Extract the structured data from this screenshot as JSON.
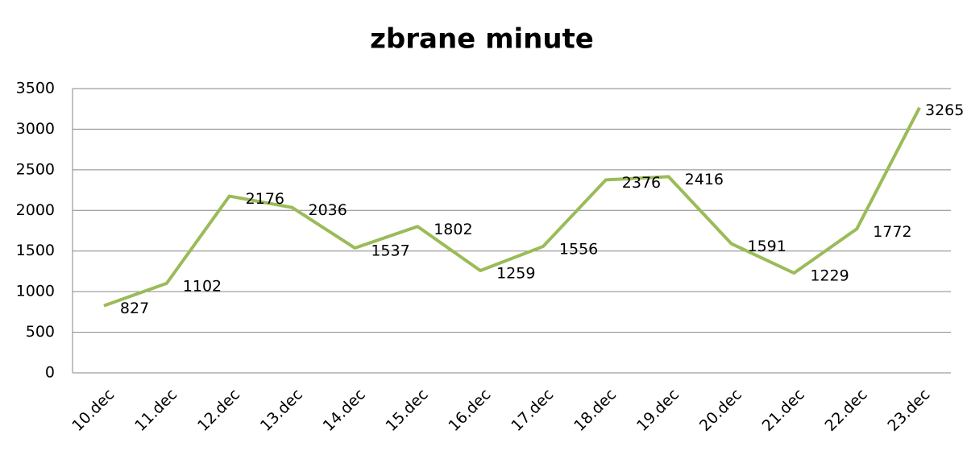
{
  "chart_data": {
    "type": "line",
    "title": "zbrane minute",
    "categories": [
      "10.dec",
      "11.dec",
      "12.dec",
      "13.dec",
      "14.dec",
      "15.dec",
      "16.dec",
      "17.dec",
      "18.dec",
      "19.dec",
      "20.dec",
      "21.dec",
      "22.dec",
      "23.dec"
    ],
    "values": [
      827,
      1102,
      2176,
      2036,
      1537,
      1802,
      1259,
      1556,
      2376,
      2416,
      1591,
      1229,
      1772,
      3265
    ],
    "color": "#9bbb59",
    "ylim": [
      0,
      3500
    ],
    "yticks": [
      0,
      500,
      1000,
      1500,
      2000,
      2500,
      3000,
      3500
    ],
    "grid": true
  }
}
